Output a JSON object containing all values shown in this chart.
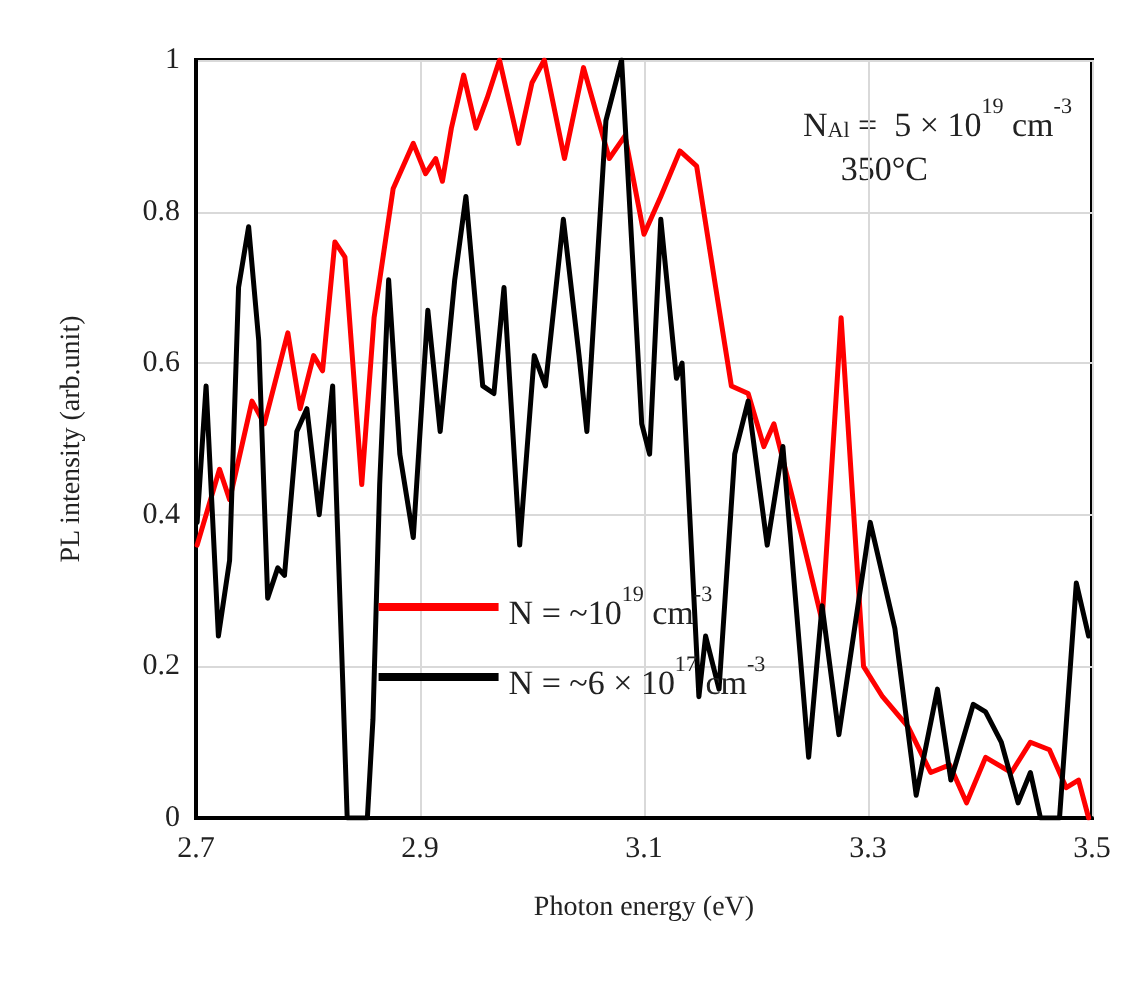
{
  "chart_data": {
    "type": "line",
    "xlabel": "Photon energy (eV)",
    "ylabel": "PL intensity (arb.unit)",
    "xlim": [
      2.7,
      3.5
    ],
    "xticks": [
      2.7,
      2.9,
      3.1,
      3.3,
      3.5
    ],
    "ylim": [
      0,
      1
    ],
    "yticks": [
      0,
      0.2,
      0.4,
      0.6,
      0.8,
      1
    ],
    "grid": true,
    "legend": "bottom",
    "marker": "none",
    "line_style": "solid",
    "annotations": [
      "N$_{Al}$ =  5 × 10$^{19}$ cm$^{-3}$",
      "350°C"
    ],
    "series": [
      {
        "name": "N = ~10$^{19}$ cm$^{-3}$",
        "color": "#ff0000",
        "x": [
          2.701,
          2.721,
          2.73,
          2.75,
          2.761,
          2.782,
          2.793,
          2.805,
          2.813,
          2.824,
          2.833,
          2.848,
          2.859,
          2.876,
          2.894,
          2.905,
          2.914,
          2.92,
          2.928,
          2.939,
          2.95,
          2.96,
          2.971,
          2.988,
          3.0,
          3.011,
          3.029,
          3.046,
          3.069,
          3.083,
          3.1,
          3.115,
          3.132,
          3.147,
          3.164,
          3.178,
          3.193,
          3.207,
          3.216,
          3.233,
          3.259,
          3.276,
          3.296,
          3.313,
          3.336,
          3.356,
          3.373,
          3.388,
          3.405,
          3.428,
          3.445,
          3.462,
          3.477,
          3.488,
          3.497
        ],
        "values": [
          0.36,
          0.46,
          0.42,
          0.55,
          0.52,
          0.64,
          0.54,
          0.61,
          0.59,
          0.76,
          0.74,
          0.44,
          0.66,
          0.83,
          0.89,
          0.85,
          0.87,
          0.84,
          0.91,
          0.98,
          0.91,
          0.95,
          1.0,
          0.89,
          0.97,
          1.0,
          0.87,
          0.99,
          0.87,
          0.9,
          0.77,
          0.82,
          0.88,
          0.86,
          0.7,
          0.57,
          0.56,
          0.49,
          0.52,
          0.42,
          0.26,
          0.66,
          0.2,
          0.16,
          0.12,
          0.06,
          0.07,
          0.02,
          0.08,
          0.06,
          0.1,
          0.09,
          0.04,
          0.05,
          0.0
        ]
      },
      {
        "name": "N = ~6 × 10$^{17}$ cm$^{-3}$",
        "color": "#000000",
        "x": [
          2.701,
          2.709,
          2.72,
          2.73,
          2.738,
          2.747,
          2.756,
          2.764,
          2.773,
          2.779,
          2.79,
          2.799,
          2.81,
          2.822,
          2.831,
          2.835,
          2.853,
          2.858,
          2.864,
          2.872,
          2.882,
          2.894,
          2.907,
          2.918,
          2.931,
          2.941,
          2.956,
          2.966,
          2.975,
          2.989,
          3.002,
          3.012,
          3.028,
          3.042,
          3.049,
          3.066,
          3.08,
          3.098,
          3.105,
          3.115,
          3.129,
          3.134,
          3.149,
          3.155,
          3.167,
          3.181,
          3.193,
          3.21,
          3.224,
          3.247,
          3.259,
          3.274,
          3.302,
          3.324,
          3.343,
          3.362,
          3.374,
          3.394,
          3.405,
          3.419,
          3.434,
          3.445,
          3.454,
          3.471,
          3.486,
          3.497
        ],
        "values": [
          0.39,
          0.57,
          0.24,
          0.34,
          0.7,
          0.78,
          0.63,
          0.29,
          0.33,
          0.32,
          0.51,
          0.54,
          0.4,
          0.57,
          0.18,
          0.0,
          0.0,
          0.13,
          0.44,
          0.71,
          0.48,
          0.37,
          0.67,
          0.51,
          0.71,
          0.82,
          0.57,
          0.56,
          0.7,
          0.36,
          0.61,
          0.57,
          0.79,
          0.61,
          0.51,
          0.92,
          1.0,
          0.52,
          0.48,
          0.79,
          0.58,
          0.6,
          0.16,
          0.24,
          0.17,
          0.48,
          0.55,
          0.36,
          0.49,
          0.08,
          0.28,
          0.11,
          0.39,
          0.25,
          0.03,
          0.17,
          0.05,
          0.15,
          0.14,
          0.1,
          0.02,
          0.06,
          0.0,
          0.0,
          0.31,
          0.24
        ]
      }
    ]
  }
}
